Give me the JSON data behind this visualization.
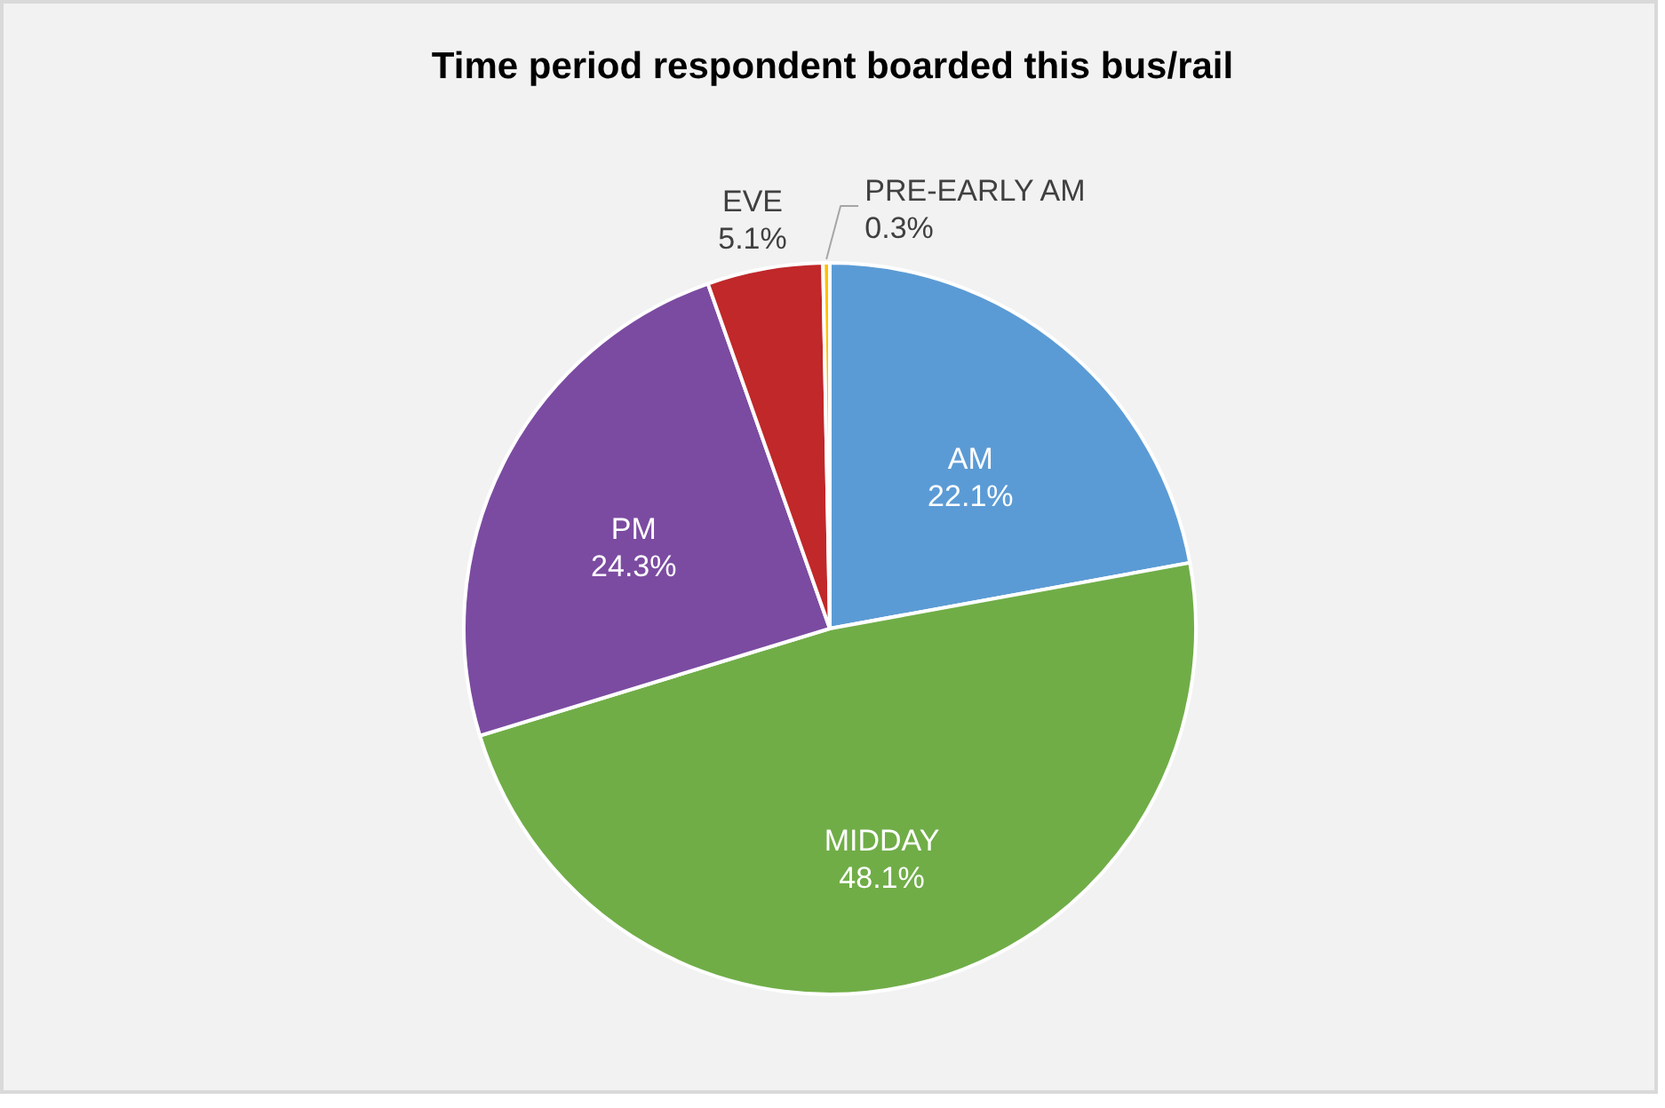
{
  "chart_data": {
    "type": "pie",
    "title": "Time period respondent boarded this bus/rail",
    "categories": [
      "AM",
      "MIDDAY",
      "PM",
      "EVE",
      "PRE-EARLY AM"
    ],
    "values": [
      22.1,
      48.1,
      24.3,
      5.1,
      0.3
    ],
    "value_labels": [
      "22.1%",
      "48.1%",
      "24.3%",
      "5.1%",
      "0.3%"
    ],
    "colors": [
      "#5b9bd5",
      "#70ad47",
      "#7b4ba1",
      "#c0282a",
      "#ffc000"
    ]
  }
}
